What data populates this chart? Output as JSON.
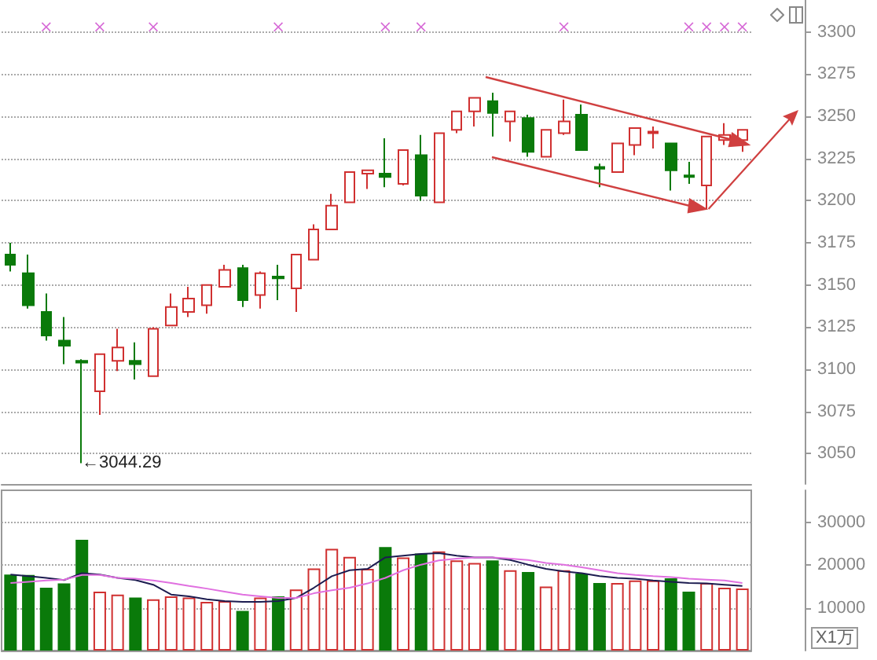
{
  "chart_data": [
    {
      "type": "candlestick",
      "categories": [
        null,
        null,
        null,
        null,
        null,
        null,
        null,
        null,
        null,
        null,
        null,
        null,
        null,
        null,
        null,
        null,
        null,
        null,
        null,
        null,
        null,
        null,
        null,
        null,
        null,
        null,
        null,
        null,
        null,
        null,
        null,
        null,
        null,
        null,
        null,
        null,
        null,
        null,
        null,
        null,
        null,
        null
      ],
      "series": [
        {
          "type": "candlestick",
          "ohlc": [
            [
              3168,
              3175,
              3158,
              3162
            ],
            [
              3157,
              3168,
              3136,
              3138
            ],
            [
              3134,
              3145,
              3117,
              3120
            ],
            [
              3117,
              3131,
              3103,
              3114
            ],
            [
              3105,
              3106,
              3044.29,
              3104
            ],
            [
              3087,
              3109,
              3073,
              3109
            ],
            [
              3105,
              3124,
              3099,
              3113
            ],
            [
              3105,
              3116,
              3094,
              3103
            ],
            [
              3096,
              3125,
              3096,
              3124
            ],
            [
              3126,
              3145,
              3126,
              3137
            ],
            [
              3134,
              3149,
              3131,
              3142
            ],
            [
              3138,
              3150,
              3133,
              3150
            ],
            [
              3149,
              3162,
              3149,
              3159
            ],
            [
              3160,
              3162,
              3137,
              3141
            ],
            [
              3144,
              3158,
              3136,
              3157
            ],
            [
              3155,
              3162,
              3141,
              3154
            ],
            [
              3148,
              3168,
              3134,
              3168
            ],
            [
              3165,
              3186,
              3165,
              3183
            ],
            [
              3183,
              3204,
              3183,
              3197
            ],
            [
              3199,
              3217,
              3199,
              3217
            ],
            [
              3216,
              3218,
              3207,
              3218
            ],
            [
              3216,
              3237,
              3208,
              3214
            ],
            [
              3210,
              3230,
              3209,
              3230
            ],
            [
              3227,
              3239,
              3200,
              3203
            ],
            [
              3199,
              3240,
              3199,
              3240
            ],
            [
              3242,
              3253,
              3240,
              3253
            ],
            [
              3253,
              3261,
              3244,
              3261
            ],
            [
              3259,
              3264,
              3238,
              3252
            ],
            [
              3247,
              3253,
              3235,
              3253
            ],
            [
              3249,
              3251,
              3226,
              3229
            ],
            [
              3226,
              3242,
              3226,
              3242
            ],
            [
              3240,
              3260,
              3239,
              3247
            ],
            [
              3251,
              3257,
              3230,
              3230
            ],
            [
              3220,
              3222,
              3208,
              3219
            ],
            [
              3217,
              3234,
              3217,
              3234
            ],
            [
              3233,
              3243,
              3227,
              3243
            ],
            [
              3240,
              3244,
              3231,
              3241
            ],
            [
              3234,
              3234,
              3206,
              3218
            ],
            [
              3215,
              3223,
              3210,
              3214
            ],
            [
              3209,
              3238,
              3195,
              3238
            ],
            [
              3236,
              3246,
              3233,
              3239
            ],
            [
              3236,
              3242,
              3229,
              3242
            ]
          ],
          "colors": [
            "#0a7a0a",
            "#0a7a0a",
            "#0a7a0a",
            "#0a7a0a",
            "#0a7a0a",
            "#d03030",
            "#d03030",
            "#0a7a0a",
            "#d03030",
            "#d03030",
            "#d03030",
            "#d03030",
            "#d03030",
            "#0a7a0a",
            "#d03030",
            "#0a7a0a",
            "#d03030",
            "#d03030",
            "#d03030",
            "#d03030",
            "#d03030",
            "#0a7a0a",
            "#d03030",
            "#0a7a0a",
            "#d03030",
            "#d03030",
            "#d03030",
            "#0a7a0a",
            "#d03030",
            "#0a7a0a",
            "#d03030",
            "#d03030",
            "#0a7a0a",
            "#0a7a0a",
            "#d03030",
            "#d03030",
            "#d03030",
            "#0a7a0a",
            "#0a7a0a",
            "#d03030",
            "#d03030",
            "#d03030"
          ]
        },
        {
          "type": "scatter",
          "marker": "cross",
          "color": "#cc44cc",
          "values": [
            null,
            null,
            3303,
            null,
            null,
            3303,
            null,
            null,
            3303,
            null,
            null,
            null,
            null,
            null,
            null,
            3303,
            null,
            null,
            null,
            null,
            null,
            3303,
            null,
            3303,
            null,
            null,
            null,
            null,
            null,
            null,
            null,
            3303,
            null,
            null,
            null,
            null,
            null,
            null,
            3303,
            3303,
            3303,
            3303
          ]
        }
      ],
      "ylim": [
        3032,
        3319
      ],
      "yticks": [
        3050,
        3075,
        3100,
        3125,
        3150,
        3175,
        3200,
        3225,
        3250,
        3275,
        3300
      ],
      "grid": "y",
      "tick_labels": "y",
      "annotations": [
        "←3044.29"
      ]
    },
    {
      "type": "bar",
      "categories": [
        null,
        null,
        null,
        null,
        null,
        null,
        null,
        null,
        null,
        null,
        null,
        null,
        null,
        null,
        null,
        null,
        null,
        null,
        null,
        null,
        null,
        null,
        null,
        null,
        null,
        null,
        null,
        null,
        null,
        null,
        null,
        null,
        null,
        null,
        null,
        null,
        null,
        null,
        null,
        null,
        null,
        null
      ],
      "ylabel": "X1万",
      "series": [
        {
          "type": "bar",
          "values": [
            17800,
            17700,
            14700,
            15700,
            25900,
            13800,
            13100,
            12400,
            12000,
            12700,
            12400,
            11400,
            11600,
            9300,
            12400,
            12700,
            14300,
            19200,
            23800,
            21900,
            19100,
            24200,
            21800,
            22700,
            23200,
            21100,
            20500,
            21100,
            18800,
            18400,
            15000,
            18800,
            18000,
            15800,
            15800,
            16400,
            16400,
            16900,
            13800,
            15800,
            14700,
            14500
          ],
          "colors": [
            "#0a7a0a",
            "#0a7a0a",
            "#0a7a0a",
            "#0a7a0a",
            "#0a7a0a",
            "#d03030",
            "#d03030",
            "#0a7a0a",
            "#d03030",
            "#d03030",
            "#d03030",
            "#d03030",
            "#d03030",
            "#0a7a0a",
            "#d03030",
            "#0a7a0a",
            "#d03030",
            "#d03030",
            "#d03030",
            "#d03030",
            "#d03030",
            "#0a7a0a",
            "#d03030",
            "#0a7a0a",
            "#d03030",
            "#d03030",
            "#d03030",
            "#0a7a0a",
            "#d03030",
            "#0a7a0a",
            "#d03030",
            "#d03030",
            "#0a7a0a",
            "#0a7a0a",
            "#d03030",
            "#d03030",
            "#d03030",
            "#0a7a0a",
            "#0a7a0a",
            "#d03030",
            "#d03030",
            "#d03030"
          ]
        },
        {
          "type": "line",
          "color": "#1c1c50",
          "values": [
            17800,
            17400,
            17000,
            16500,
            18100,
            17800,
            17000,
            16500,
            15400,
            13100,
            12700,
            12000,
            11600,
            11400,
            11400,
            11600,
            12300,
            14700,
            17400,
            18800,
            19100,
            21800,
            22200,
            22600,
            22800,
            22200,
            21800,
            21800,
            21200,
            20100,
            19100,
            18500,
            18100,
            17400,
            17000,
            16800,
            16400,
            16100,
            15800,
            15700,
            15400,
            15100
          ]
        },
        {
          "type": "line",
          "color": "#e070e0",
          "values": [
            15800,
            16100,
            16400,
            16600,
            17700,
            17700,
            17000,
            16800,
            16400,
            15800,
            15100,
            14500,
            13800,
            13100,
            12700,
            12300,
            12300,
            13400,
            14100,
            14700,
            15700,
            17000,
            18800,
            20100,
            21100,
            21500,
            21800,
            21800,
            21500,
            21200,
            20500,
            20100,
            19500,
            18800,
            18100,
            17700,
            17400,
            17200,
            16800,
            16600,
            16400,
            15800
          ]
        }
      ],
      "ylim": [
        0,
        37500
      ],
      "yticks": [
        10000,
        20000,
        30000
      ],
      "grid": "y",
      "tick_labels": "y",
      "marker": "none",
      "line_style": "solid"
    }
  ]
}
